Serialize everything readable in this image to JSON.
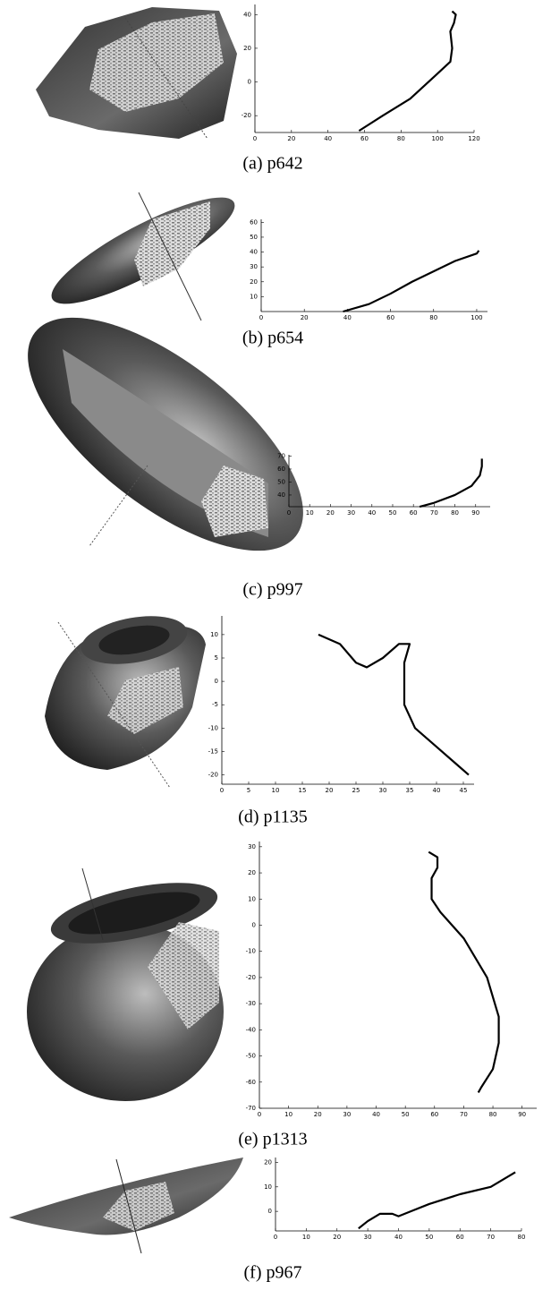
{
  "chart_data": [
    {
      "type": "line",
      "caption": "(a) p642",
      "x": [
        57,
        70,
        85,
        100,
        105,
        107,
        108,
        107,
        109,
        110,
        108
      ],
      "values": [
        -29,
        -20,
        -10,
        5,
        10,
        12,
        20,
        30,
        35,
        40,
        42
      ],
      "color": "#000000",
      "xlim": [
        0,
        120
      ],
      "ylim": [
        -30,
        46
      ],
      "xticks": [
        0,
        20,
        40,
        60,
        80,
        100,
        120
      ],
      "yticks": [
        -20,
        0,
        20,
        40
      ]
    },
    {
      "type": "line",
      "caption": "(b) p654",
      "x": [
        38,
        50,
        60,
        70,
        80,
        90,
        100,
        101
      ],
      "values": [
        0,
        5,
        12,
        20,
        27,
        34,
        39,
        41
      ],
      "color": "#000000",
      "xlim": [
        0,
        105
      ],
      "ylim": [
        0,
        62
      ],
      "xticks": [
        0,
        20,
        40,
        60,
        80,
        100
      ],
      "yticks": [
        10,
        20,
        30,
        40,
        50,
        60
      ]
    },
    {
      "type": "line",
      "caption": "(c) p997",
      "x": [
        63,
        70,
        80,
        88,
        92,
        93,
        93
      ],
      "values": [
        31,
        34,
        40,
        47,
        55,
        62,
        68
      ],
      "color": "#000000",
      "xlim": [
        0,
        97
      ],
      "ylim": [
        31,
        71
      ],
      "xticks": [
        0,
        10,
        20,
        30,
        40,
        50,
        60,
        70,
        80,
        90
      ],
      "yticks": [
        40,
        50,
        60,
        70
      ]
    },
    {
      "type": "line",
      "caption": "(d) p1135",
      "x": [
        18,
        22,
        25,
        27,
        30,
        33,
        35,
        34,
        34,
        36,
        40,
        44,
        46
      ],
      "values": [
        10,
        8,
        4,
        3,
        5,
        8,
        8,
        4,
        -5,
        -10,
        -14,
        -18,
        -20
      ],
      "color": "#000000",
      "xlim": [
        0,
        47
      ],
      "ylim": [
        -22,
        14
      ],
      "xticks": [
        0,
        5,
        10,
        15,
        20,
        25,
        30,
        35,
        40,
        45
      ],
      "yticks": [
        -20,
        -15,
        -10,
        -5,
        0,
        5,
        10
      ]
    },
    {
      "type": "line",
      "caption": "(e) p1313",
      "x": [
        58,
        61,
        61,
        59,
        59,
        62,
        70,
        78,
        82,
        82,
        80,
        76,
        75
      ],
      "values": [
        28,
        26,
        22,
        18,
        10,
        5,
        -5,
        -20,
        -35,
        -45,
        -55,
        -62,
        -64
      ],
      "color": "#000000",
      "xlim": [
        0,
        95
      ],
      "ylim": [
        -70,
        32
      ],
      "xticks": [
        0,
        10,
        20,
        30,
        40,
        50,
        60,
        70,
        80,
        90
      ],
      "yticks": [
        -70,
        -60,
        -50,
        -40,
        -30,
        -20,
        -10,
        0,
        10,
        20,
        30
      ]
    },
    {
      "type": "line",
      "caption": "(f) p967",
      "x": [
        27,
        30,
        34,
        38,
        40,
        44,
        50,
        60,
        70,
        78
      ],
      "values": [
        -7,
        -4,
        -1,
        -1,
        -2,
        0,
        3,
        7,
        10,
        16
      ],
      "color": "#000000",
      "xlim": [
        0,
        80
      ],
      "ylim": [
        -8,
        22
      ],
      "xticks": [
        0,
        10,
        20,
        30,
        40,
        50,
        60,
        70,
        80
      ],
      "yticks": [
        0,
        10,
        20
      ]
    }
  ]
}
